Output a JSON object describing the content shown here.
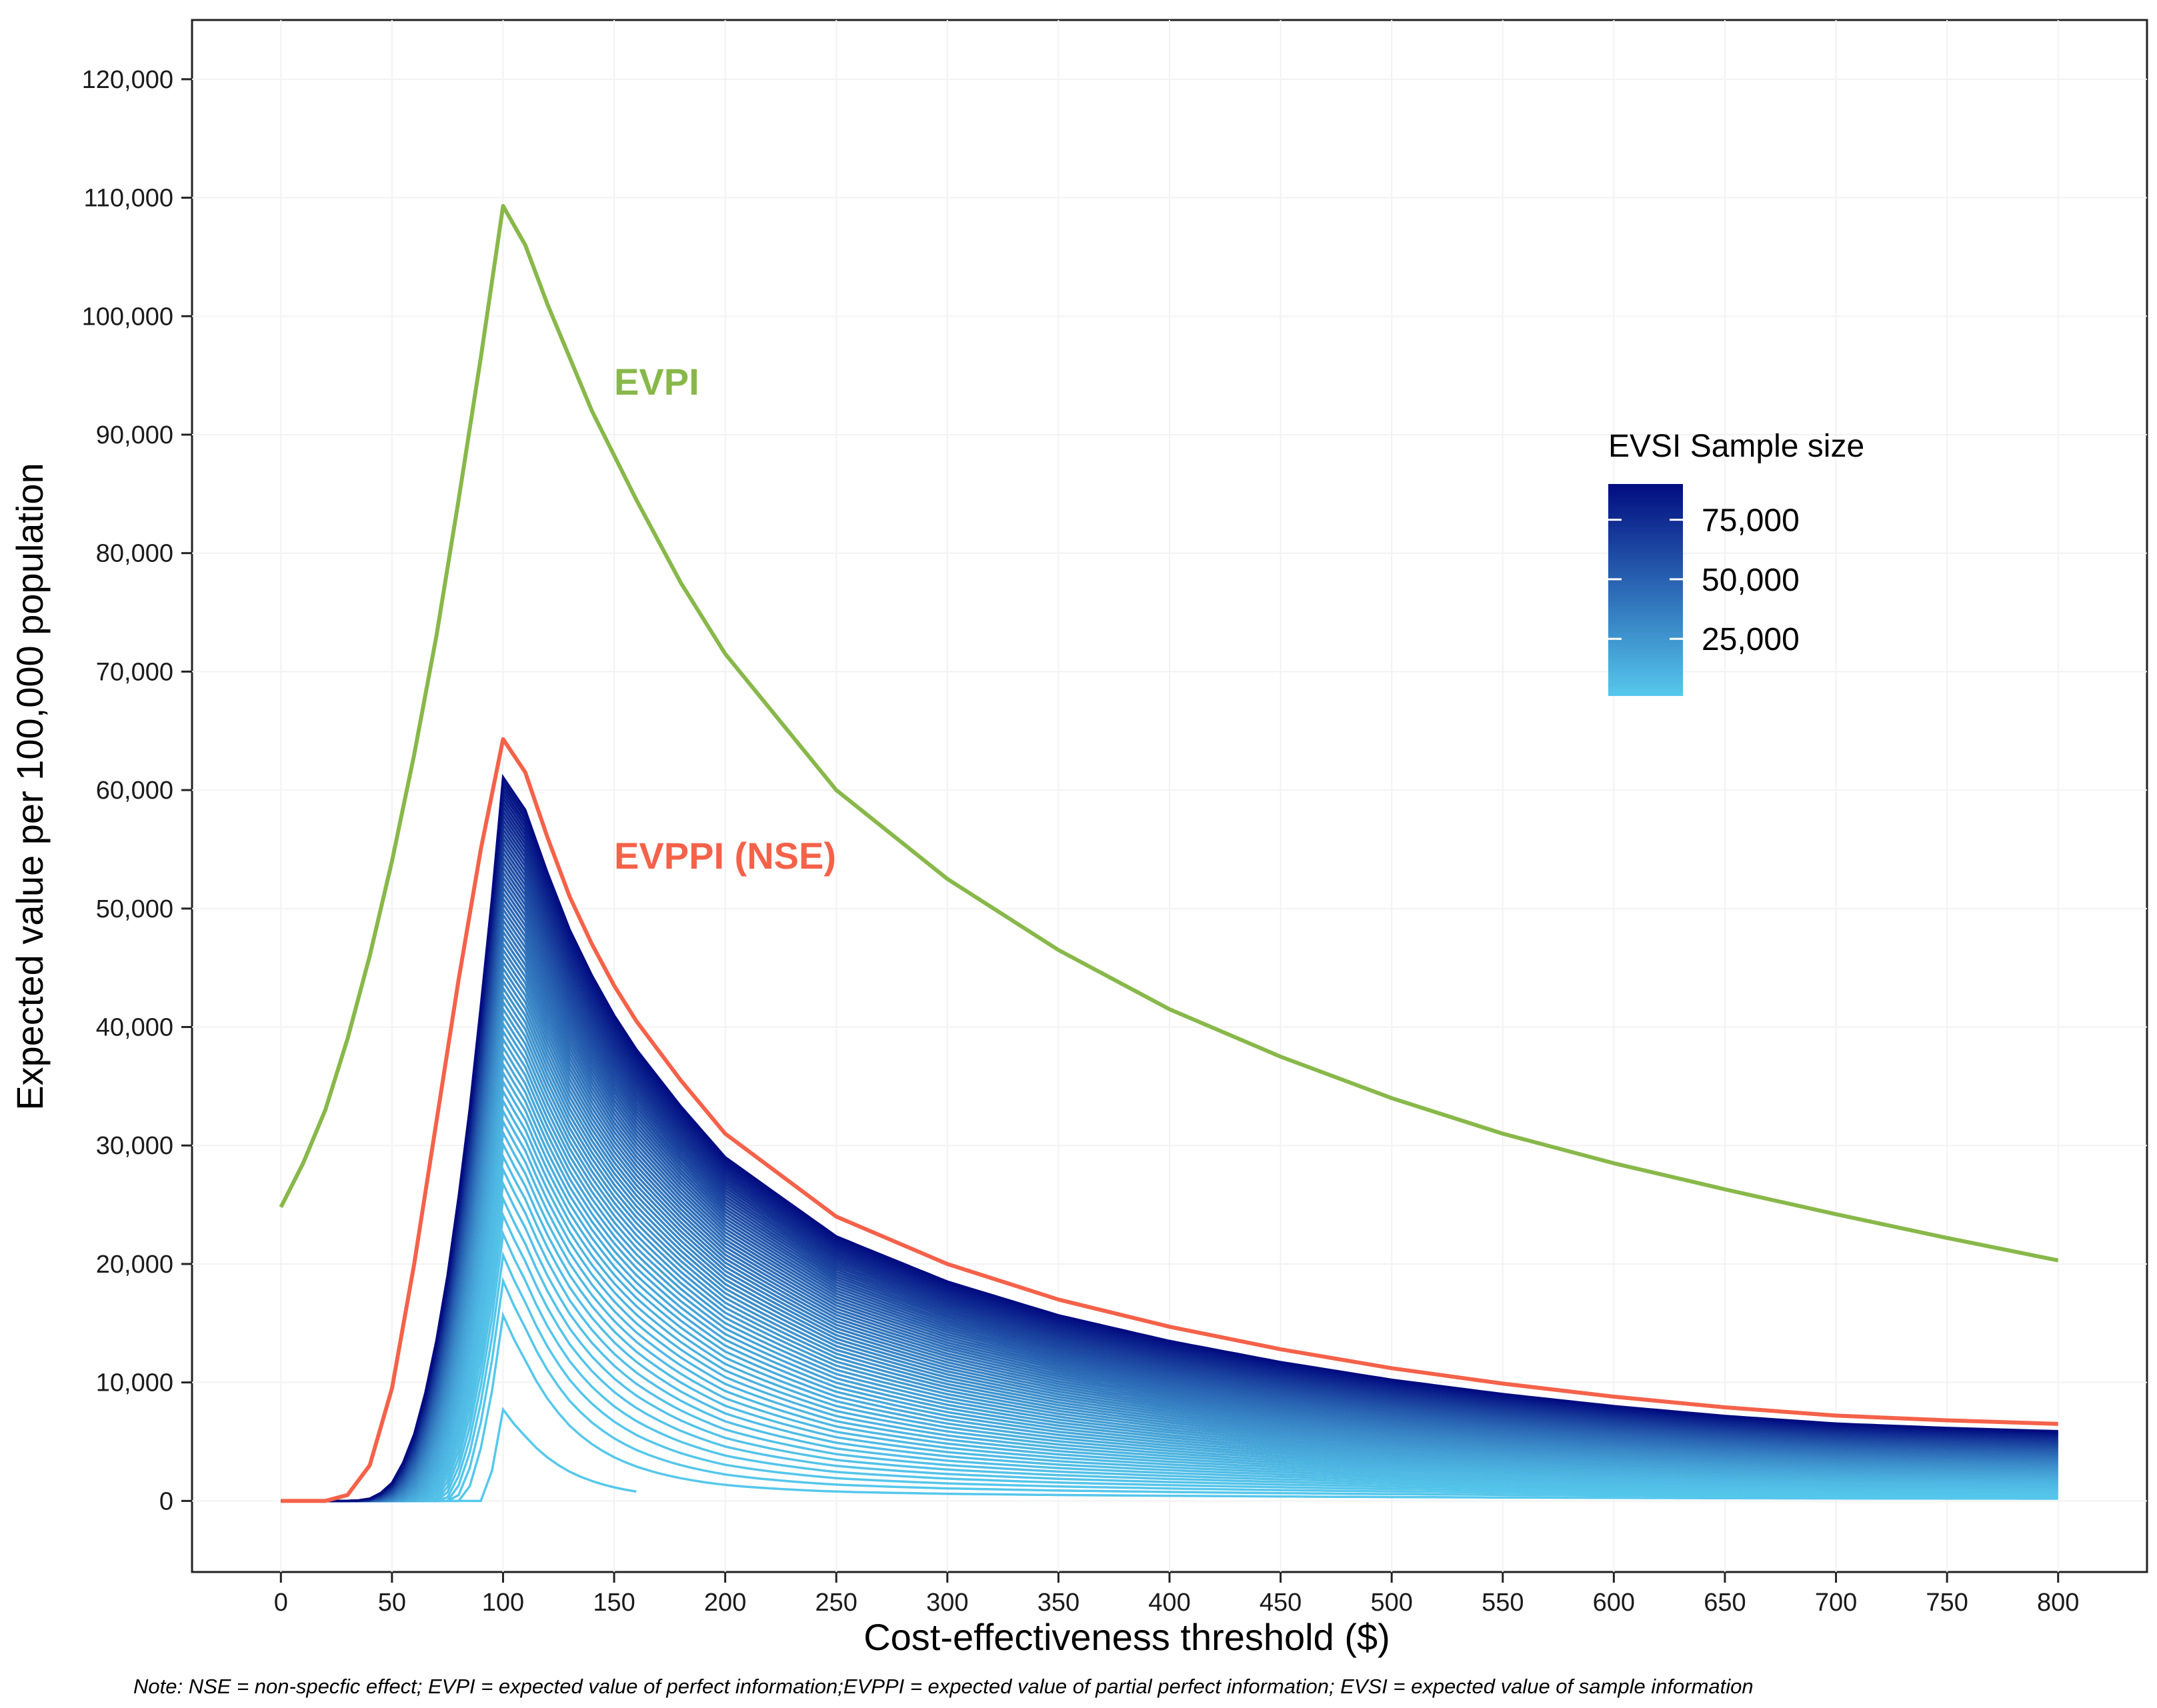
{
  "chart_data": {
    "type": "line",
    "title": "",
    "xlabel": "Cost-effectiveness threshold ($)",
    "ylabel": "Expected value per 100,000 population",
    "xlim": [
      -40,
      840
    ],
    "ylim": [
      -6000,
      125000
    ],
    "x_ticks": [
      0,
      50,
      100,
      150,
      200,
      250,
      300,
      350,
      400,
      450,
      500,
      550,
      600,
      650,
      700,
      750,
      800
    ],
    "x_tick_labels": [
      "0",
      "50",
      "100",
      "150",
      "200",
      "250",
      "300",
      "350",
      "400",
      "450",
      "500",
      "550",
      "600",
      "650",
      "700",
      "750",
      "800"
    ],
    "y_ticks": [
      0,
      10000,
      20000,
      30000,
      40000,
      50000,
      60000,
      70000,
      80000,
      90000,
      100000,
      110000,
      120000
    ],
    "y_tick_labels": [
      "0",
      "10,000",
      "20,000",
      "30,000",
      "40,000",
      "50,000",
      "60,000",
      "70,000",
      "80,000",
      "90,000",
      "100,000",
      "110,000",
      "120,000"
    ],
    "grid": true,
    "series": [
      {
        "name": "EVPI",
        "color": "#88b84a",
        "x": [
          0,
          10,
          20,
          30,
          40,
          50,
          60,
          70,
          80,
          90,
          100,
          110,
          120,
          140,
          160,
          180,
          200,
          250,
          300,
          350,
          400,
          450,
          500,
          550,
          600,
          650,
          700,
          750,
          800
        ],
        "values": [
          24800,
          28500,
          33000,
          39000,
          46000,
          54000,
          63000,
          73000,
          84500,
          96500,
          109300,
          106000,
          101000,
          92000,
          84500,
          77500,
          71500,
          60000,
          52500,
          46500,
          41500,
          37500,
          34000,
          31000,
          28500,
          26300,
          24200,
          22200,
          20300
        ]
      },
      {
        "name": "EVPPI (NSE)",
        "color": "#f4624a",
        "x": [
          0,
          20,
          30,
          40,
          50,
          60,
          70,
          80,
          90,
          100,
          110,
          120,
          130,
          140,
          150,
          160,
          180,
          200,
          250,
          300,
          350,
          400,
          450,
          500,
          550,
          600,
          650,
          700,
          750,
          800
        ],
        "values": [
          0,
          0,
          500,
          3000,
          9500,
          20000,
          32000,
          44000,
          55000,
          64300,
          61500,
          56000,
          51000,
          47000,
          43500,
          40500,
          35500,
          31000,
          24000,
          20000,
          17000,
          14700,
          12800,
          11200,
          9900,
          8800,
          7900,
          7200,
          6800,
          6500
        ]
      }
    ],
    "evsi": {
      "name": "EVSI",
      "legend_title": "EVSI Sample size",
      "legend_labels": [
        "75,000",
        "50,000",
        "25,000"
      ],
      "legend_values": [
        75000,
        50000,
        25000
      ],
      "color_low": "#56c8ec",
      "color_high": "#020c80",
      "sample_size_min": 1000,
      "sample_size_max": 90000,
      "peak_x": 100,
      "x_range": [
        0,
        800
      ],
      "peak_values_range": [
        7800,
        61000
      ],
      "value_at_800_range": [
        0,
        5800
      ]
    },
    "annotations": [
      {
        "text": "EVPI",
        "x": 150,
        "y": 94500,
        "color": "#88b84a"
      },
      {
        "text": "EVPPI (NSE)",
        "x": 150,
        "y": 54500,
        "color": "#f4624a"
      }
    ],
    "note": "Note: NSE = non-specfic effect; EVPI = expected value of perfect information;EVPPI = expected value of partial perfect information; EVSI = expected value of sample information"
  }
}
